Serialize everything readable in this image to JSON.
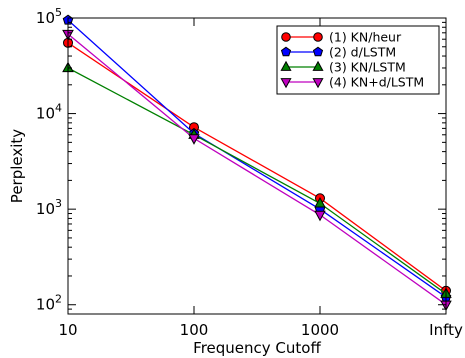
{
  "chart_data": {
    "type": "line",
    "xlabel": "Frequency Cutoff",
    "ylabel": "Perplexity",
    "categories": [
      "10",
      "100",
      "1000",
      "Infty"
    ],
    "y_scale": "log",
    "ylim": [
      80,
      100000
    ],
    "y_ticks": [
      {
        "value": 100,
        "base": "10",
        "exp": "2"
      },
      {
        "value": 1000,
        "base": "10",
        "exp": "3"
      },
      {
        "value": 10000,
        "base": "10",
        "exp": "4"
      },
      {
        "value": 100000,
        "base": "10",
        "exp": "5"
      }
    ],
    "legend_position": "top-right",
    "grid": false,
    "series": [
      {
        "name": "(1) KN/heur",
        "color": "#ff0000",
        "fill": "#ff0000",
        "marker": "circle",
        "values": [
          55000,
          7200,
          1300,
          140
        ]
      },
      {
        "name": "(2) d/LSTM",
        "color": "#0000ff",
        "fill": "#0000ff",
        "marker": "pentagon",
        "values": [
          95000,
          6200,
          1000,
          120
        ]
      },
      {
        "name": "(3) KN/LSTM",
        "color": "#008000",
        "fill": "#008000",
        "marker": "triangle-up",
        "values": [
          30000,
          6000,
          1150,
          130
        ]
      },
      {
        "name": "(4) KN+d/LSTM",
        "color": "#bf00bf",
        "fill": "#bf00bf",
        "marker": "triangle-down",
        "values": [
          68000,
          5500,
          870,
          100
        ]
      }
    ]
  }
}
